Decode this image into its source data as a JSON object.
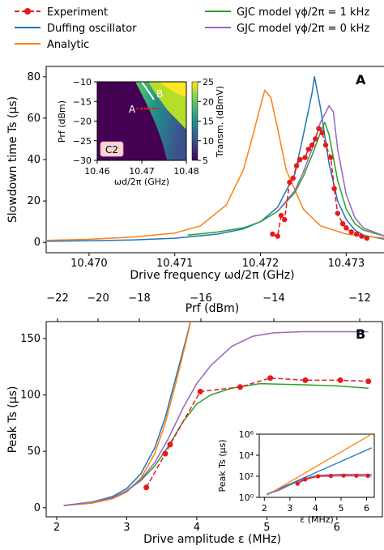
{
  "legend": [
    {
      "label": "Experiment",
      "color": "#e41a1c",
      "style": "dashed-marker"
    },
    {
      "label": "Duffing oscillator",
      "color": "#1f77b4",
      "style": "solid"
    },
    {
      "label": "Analytic",
      "color": "#ff7f0e",
      "style": "solid"
    },
    {
      "label": "GJC model γϕ/2π = 1 kHz",
      "color": "#2ca02c",
      "style": "solid"
    },
    {
      "label": "GJC model γϕ/2π = 0 kHz",
      "color": "#9467bd",
      "style": "solid"
    }
  ],
  "chart_data": [
    {
      "id": "A",
      "type": "line",
      "panel_label": "A",
      "xlabel": "Drive frequency ωd/2π (GHz)",
      "ylabel": "Slowdown time Ts (μs)",
      "xlim": [
        10.4695,
        10.47345
      ],
      "ylim": [
        -5,
        85
      ],
      "xticks": [
        10.47,
        10.471,
        10.472,
        10.473
      ],
      "xtick_labels": [
        "10.470",
        "10.471",
        "10.472",
        "10.473"
      ],
      "yticks": [
        0,
        20,
        40,
        60,
        80
      ],
      "series": [
        {
          "name": "Experiment",
          "color": "#e41a1c",
          "dashed": true,
          "markers": true,
          "x": [
            10.47214,
            10.4722,
            10.47224,
            10.47228,
            10.47234,
            10.47238,
            10.47242,
            10.47246,
            10.47252,
            10.47256,
            10.4726,
            10.47264,
            10.47268,
            10.47272,
            10.47276,
            10.47282,
            10.47286,
            10.4729,
            10.47296,
            10.473,
            10.47306,
            10.47312,
            10.47318,
            10.47324
          ],
          "y": [
            4,
            3,
            13,
            11,
            29,
            31,
            37,
            40,
            41,
            45,
            47,
            50,
            55,
            53,
            47,
            41,
            26,
            14,
            9,
            7,
            5,
            4,
            3,
            2
          ]
        },
        {
          "name": "Duffing oscillator",
          "color": "#1f77b4",
          "dashed": false,
          "markers": false,
          "x": [
            10.4695,
            10.47,
            10.4705,
            10.471,
            10.4715,
            10.4718,
            10.472,
            10.4722,
            10.4724,
            10.4725,
            10.4726,
            10.47263,
            10.4727,
            10.4728,
            10.4729,
            10.473,
            10.4731,
            10.4732,
            10.47345
          ],
          "y": [
            0.5,
            0.8,
            1.2,
            2.0,
            4.0,
            6.5,
            10,
            17,
            33,
            52,
            72,
            80,
            65,
            38,
            20,
            11,
            6,
            3.5,
            1.5
          ]
        },
        {
          "name": "Analytic",
          "color": "#ff7f0e",
          "dashed": false,
          "markers": false,
          "x": [
            10.4695,
            10.47,
            10.4705,
            10.471,
            10.4713,
            10.4716,
            10.4718,
            10.4719,
            10.472,
            10.47205,
            10.47212,
            10.4722,
            10.4723,
            10.4725,
            10.4727,
            10.473,
            10.47345
          ],
          "y": [
            1.0,
            1.5,
            2.5,
            4.5,
            8,
            18,
            35,
            50,
            66,
            73.5,
            70,
            55,
            35,
            16,
            8,
            4,
            2
          ]
        },
        {
          "name": "GJC model γϕ/2π = 1 kHz",
          "color": "#2ca02c",
          "dashed": false,
          "markers": false,
          "x": [
            10.47115,
            10.4715,
            10.4718,
            10.472,
            10.4722,
            10.4724,
            10.4725,
            10.4726,
            10.4727,
            10.47275,
            10.4728,
            10.4729,
            10.473,
            10.4731,
            10.4732,
            10.47345
          ],
          "y": [
            3.5,
            5,
            7,
            10,
            15,
            24,
            32,
            42,
            53,
            58,
            52,
            30,
            16,
            9,
            6,
            3
          ]
        },
        {
          "name": "GJC model γϕ/2π = 0 kHz",
          "color": "#9467bd",
          "dashed": false,
          "markers": false,
          "x": [
            10.4722,
            10.4724,
            10.4725,
            10.4726,
            10.4727,
            10.4728,
            10.47285,
            10.4729,
            10.473,
            10.4731,
            10.4732,
            10.47345
          ],
          "y": [
            15,
            25,
            34,
            45,
            58,
            66,
            63,
            45,
            23,
            12,
            7,
            3
          ]
        }
      ]
    },
    {
      "id": "A-inset",
      "type": "heatmap",
      "panel_label": "C2",
      "xlabel": "ωd/2π (GHz)",
      "ylabel": "Prf (dBm)",
      "colorbar_label": "Transm. (dBmV)",
      "xlim": [
        10.46,
        10.48
      ],
      "ylim": [
        -30,
        -10
      ],
      "xticks": [
        10.46,
        10.47,
        10.48
      ],
      "xtick_labels": [
        "10.46",
        "10.47",
        "10.48"
      ],
      "yticks": [
        -10,
        -15,
        -20,
        -25,
        -30
      ],
      "colorbar_ticks": [
        5,
        10,
        15,
        20,
        25
      ],
      "colorbar_range": [
        5,
        25
      ],
      "annotations": [
        {
          "text": "A",
          "x": 10.4705,
          "y": -17.5
        },
        {
          "text": "B",
          "x": 10.4755,
          "y": -13.5
        }
      ],
      "marker_line": {
        "x": [
          10.4712,
          10.4738
        ],
        "y": -17.5,
        "color": "#e41a1c"
      }
    },
    {
      "id": "B",
      "type": "line",
      "panel_label": "B",
      "xlabel": "Drive amplitude ε (MHz)",
      "ylabel": "Peak Ts (μs)",
      "top_xlabel": "Prf (dBm)",
      "xlim": [
        1.85,
        6.65
      ],
      "ylim": [
        -8,
        165
      ],
      "xticks": [
        2,
        3,
        4,
        5,
        6
      ],
      "yticks": [
        0,
        50,
        100,
        150
      ],
      "top_xticks": [
        -22,
        -20,
        -18,
        -16,
        -14,
        -12
      ],
      "series": [
        {
          "name": "Experiment",
          "color": "#e41a1c",
          "dashed": true,
          "markers": true,
          "x": [
            3.28,
            3.55,
            3.62,
            4.05,
            4.62,
            5.05,
            5.55,
            6.05,
            6.45
          ],
          "y": [
            18,
            48,
            56,
            103,
            107,
            115,
            113,
            113,
            112
          ]
        },
        {
          "name": "Duffing oscillator",
          "color": "#1f77b4",
          "dashed": false,
          "markers": false,
          "x": [
            2.1,
            2.5,
            2.8,
            3.0,
            3.2,
            3.4,
            3.55,
            3.7,
            3.85,
            3.95
          ],
          "y": [
            2,
            5,
            10,
            17,
            30,
            53,
            80,
            115,
            150,
            175
          ]
        },
        {
          "name": "Analytic",
          "color": "#ff7f0e",
          "dashed": false,
          "markers": false,
          "x": [
            2.1,
            2.5,
            2.8,
            3.0,
            3.2,
            3.4,
            3.55,
            3.7,
            3.85,
            3.95
          ],
          "y": [
            2,
            4,
            8,
            14,
            26,
            48,
            75,
            110,
            148,
            175
          ]
        },
        {
          "name": "GJC model γϕ/2π = 1 kHz",
          "color": "#2ca02c",
          "dashed": false,
          "markers": false,
          "x": [
            2.1,
            2.5,
            2.8,
            3.0,
            3.2,
            3.4,
            3.6,
            3.8,
            4.0,
            4.2,
            4.5,
            4.9,
            5.5,
            6.0,
            6.45
          ],
          "y": [
            2,
            5,
            9,
            15,
            24,
            37,
            55,
            76,
            92,
            100,
            106,
            110,
            109,
            108,
            106
          ]
        },
        {
          "name": "GJC model γϕ/2π = 0 kHz",
          "color": "#9467bd",
          "dashed": false,
          "markers": false,
          "x": [
            2.1,
            2.5,
            2.8,
            3.0,
            3.2,
            3.4,
            3.6,
            3.8,
            4.0,
            4.2,
            4.5,
            4.8,
            5.1,
            5.5,
            6.0,
            6.45
          ],
          "y": [
            2,
            5,
            9,
            15,
            25,
            40,
            62,
            88,
            110,
            126,
            143,
            152,
            155,
            156,
            156,
            156
          ]
        }
      ]
    },
    {
      "id": "B-inset",
      "type": "line",
      "xlabel": "ε (MHz)",
      "ylabel": "Peak Ts (μs)",
      "xlim": [
        1.8,
        6.3
      ],
      "ylim_log10": [
        0,
        6
      ],
      "yscale": "log",
      "xticks": [
        2,
        3,
        4,
        5,
        6
      ],
      "ytick_labels": [
        "10⁰",
        "10²",
        "10⁴",
        "10⁶"
      ],
      "series": [
        {
          "name": "Experiment",
          "color": "#e41a1c",
          "x": [
            3.3,
            3.6,
            4.1,
            4.6,
            5.1,
            5.6,
            6.05
          ],
          "y": [
            20,
            50,
            100,
            107,
            115,
            113,
            112
          ]
        },
        {
          "name": "Duffing oscillator",
          "color": "#1f77b4",
          "x": [
            2.1,
            6.2
          ],
          "y": [
            2,
            50000
          ]
        },
        {
          "name": "Analytic",
          "color": "#ff7f0e",
          "x": [
            2.1,
            6.2
          ],
          "y": [
            1.6,
            1000000
          ]
        },
        {
          "name": "GJC model γϕ/2π = 1 kHz",
          "color": "#2ca02c",
          "x": [
            2.1,
            2.6,
            3.0,
            3.4,
            3.8,
            4.2,
            4.8,
            5.5,
            6.2
          ],
          "y": [
            2,
            5,
            15,
            37,
            76,
            100,
            110,
            109,
            106
          ]
        },
        {
          "name": "GJC model γϕ/2π = 0 kHz",
          "color": "#9467bd",
          "x": [
            2.1,
            2.6,
            3.0,
            3.4,
            3.8,
            4.2,
            4.8,
            5.5,
            6.2
          ],
          "y": [
            2,
            5,
            15,
            40,
            88,
            126,
            152,
            156,
            156
          ]
        }
      ]
    }
  ]
}
